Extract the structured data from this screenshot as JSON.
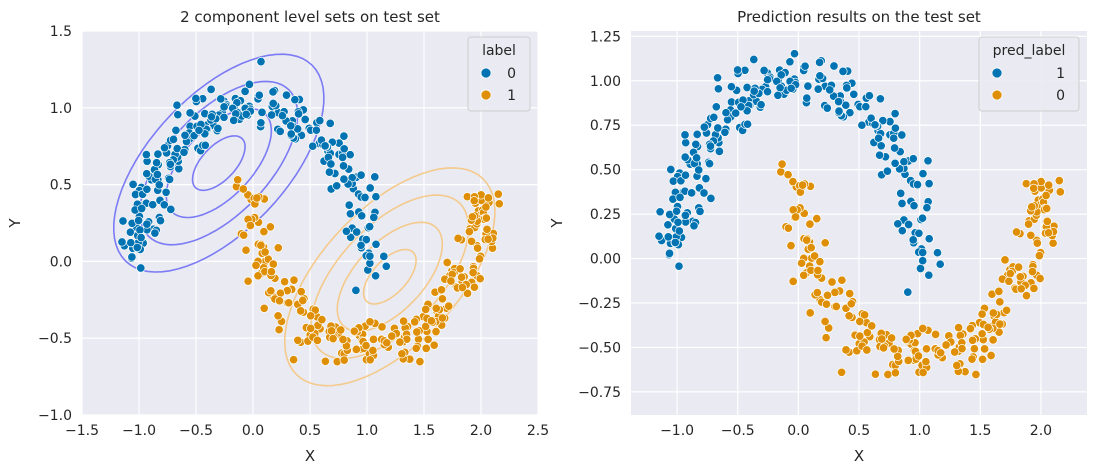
{
  "colors": {
    "blue": "#0173b2",
    "orange": "#de8f05",
    "bg": "#eaeaf2",
    "grid": "#ffffff",
    "contour_blue": "#6f6ff5",
    "contour_orange": "#f5c781"
  },
  "chart_data": [
    {
      "type": "scatter",
      "title": "2 component level sets on test set",
      "xlabel": "X",
      "ylabel": "Y",
      "xlim": [
        -1.5,
        2.5
      ],
      "ylim": [
        -1.0,
        1.5
      ],
      "xticks": [
        -1.5,
        -1.0,
        -0.5,
        0.0,
        0.5,
        1.0,
        1.5,
        2.0,
        2.5
      ],
      "yticks": [
        -1.0,
        -0.5,
        0.0,
        0.5,
        1.0,
        1.5
      ],
      "xtick_labels": [
        "−1.5",
        "−1.0",
        "−0.5",
        "0.0",
        "0.5",
        "1.0",
        "1.5",
        "2.0",
        "2.5"
      ],
      "ytick_labels": [
        "−1.0",
        "−0.5",
        "0.0",
        "0.5",
        "1.0",
        "1.5"
      ],
      "grid": true,
      "legend": {
        "title": "label",
        "position": "top-right",
        "entries": [
          "0",
          "1"
        ]
      },
      "contours": [
        {
          "series": "0",
          "center": [
            -0.3,
            0.64
          ],
          "radii": [
            1.05,
            0.5
          ],
          "angle_deg": 33,
          "levels": [
            0.25,
            0.5,
            0.75,
            1.0
          ]
        },
        {
          "series": "1",
          "center": [
            1.2,
            -0.1
          ],
          "radii": [
            1.05,
            0.5
          ],
          "angle_deg": 33,
          "levels": [
            0.25,
            0.5,
            0.75,
            1.0
          ]
        }
      ],
      "series": [
        {
          "name": "0",
          "label": "0",
          "color_key": "blue",
          "style": "upper_moon"
        },
        {
          "name": "1",
          "label": "1",
          "color_key": "orange",
          "style": "lower_moon"
        }
      ]
    },
    {
      "type": "scatter",
      "title": "Prediction results on the test set",
      "xlabel": "X",
      "ylabel": "Y",
      "xlim": [
        -1.38,
        2.38
      ],
      "ylim": [
        -0.88,
        1.28
      ],
      "xticks": [
        -1.0,
        -0.5,
        0.0,
        0.5,
        1.0,
        1.5,
        2.0
      ],
      "yticks": [
        -0.75,
        -0.5,
        -0.25,
        0.0,
        0.25,
        0.5,
        0.75,
        1.0,
        1.25
      ],
      "xtick_labels": [
        "−1.0",
        "−0.5",
        "0.0",
        "0.5",
        "1.0",
        "1.5",
        "2.0"
      ],
      "ytick_labels": [
        "−0.75",
        "−0.50",
        "−0.25",
        "0.00",
        "0.25",
        "0.50",
        "0.75",
        "1.00",
        "1.25"
      ],
      "grid": true,
      "legend": {
        "title": "pred_label",
        "position": "top-right",
        "entries": [
          "1",
          "0"
        ]
      },
      "series": [
        {
          "name": "1",
          "label": "1",
          "color_key": "blue",
          "style": "upper_moon"
        },
        {
          "name": "0",
          "label": "0",
          "color_key": "orange",
          "style": "lower_moon"
        }
      ]
    }
  ]
}
